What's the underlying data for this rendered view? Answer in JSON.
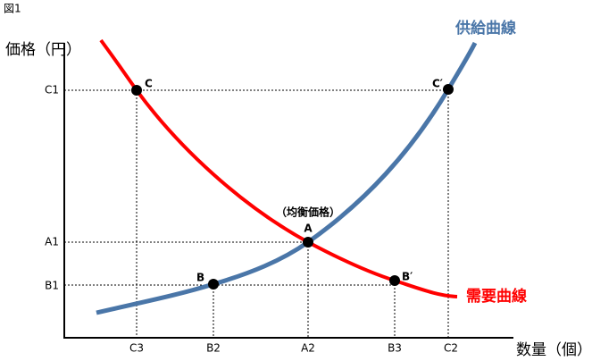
{
  "figure_label": "図1",
  "axes": {
    "y_label": "価格（円）",
    "x_label": "数量（個）"
  },
  "curves": {
    "supply": "供給曲線",
    "demand": "需要曲線"
  },
  "annotation": "（均衡価格）",
  "points": {
    "A": "A",
    "B": "B",
    "B_prime": "B′",
    "C": "C",
    "C_prime": "C′"
  },
  "y_ticks": [
    "C1",
    "A1",
    "B1"
  ],
  "x_ticks": [
    "C3",
    "B2",
    "A2",
    "B3",
    "C2"
  ]
}
